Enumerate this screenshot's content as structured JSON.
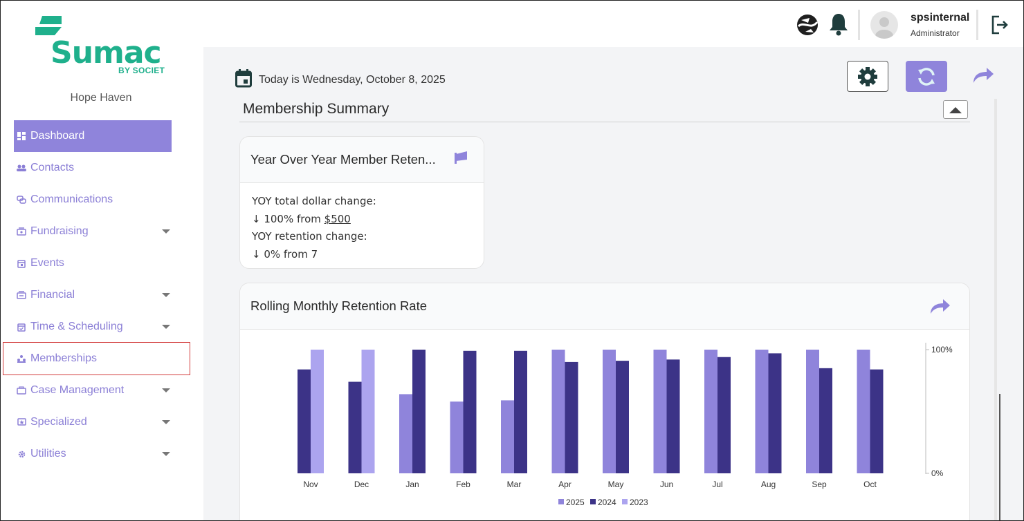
{
  "sidebar": {
    "logo_text": "Sumac",
    "logo_sub": "BY SOCIET",
    "org_name": "Hope Haven",
    "items": [
      {
        "label": "Dashboard",
        "icon": "dashboard-icon",
        "active": true,
        "caret": false
      },
      {
        "label": "Contacts",
        "icon": "contacts-icon",
        "caret": false
      },
      {
        "label": "Communications",
        "icon": "communications-icon",
        "caret": false
      },
      {
        "label": "Fundraising",
        "icon": "fundraising-icon",
        "caret": true
      },
      {
        "label": "Events",
        "icon": "events-icon",
        "caret": false
      },
      {
        "label": "Financial",
        "icon": "financial-icon",
        "caret": true
      },
      {
        "label": "Time & Scheduling",
        "icon": "calendar-check-icon",
        "caret": true
      },
      {
        "label": "Memberships",
        "icon": "memberships-icon",
        "caret": false,
        "highlighted": true
      },
      {
        "label": "Case Management",
        "icon": "case-management-icon",
        "caret": true
      },
      {
        "label": "Specialized",
        "icon": "specialized-icon",
        "caret": true
      },
      {
        "label": "Utilities",
        "icon": "utilities-icon",
        "caret": true
      }
    ]
  },
  "topbar": {
    "user_name": "spsinternal",
    "user_role": "Administrator",
    "icons": [
      "globe-support-icon",
      "bell-icon",
      "avatar-icon",
      "logout-icon"
    ]
  },
  "main": {
    "date_text": "Today is Wednesday, October 8, 2025",
    "section_title": "Membership Summary",
    "yoy_card": {
      "title": "Year Over Year Member Reten...",
      "line1": "YOY total dollar change:",
      "line2_prefix": "↓ 100% from ",
      "line2_amount": "$500",
      "line3": "YOY retention change:",
      "line4": "↓ 0% from 7"
    },
    "rolling_card": {
      "title": "Rolling Monthly Retention Rate"
    }
  },
  "colors": {
    "accent": "#8f84db",
    "brand_green": "#1fb08c",
    "series_2025": "#8f84db",
    "series_2024": "#3c3387",
    "series_2023": "#aca4ef"
  },
  "chart_data": {
    "type": "bar",
    "categories": [
      "Nov",
      "Dec",
      "Jan",
      "Feb",
      "Mar",
      "Apr",
      "May",
      "Jun",
      "Jul",
      "Aug",
      "Sep",
      "Oct"
    ],
    "series": [
      {
        "name": "2025",
        "values": [
          null,
          null,
          64,
          58,
          59,
          100,
          100,
          100,
          100,
          100,
          100,
          100
        ]
      },
      {
        "name": "2024",
        "values": [
          84,
          74,
          100,
          99,
          99,
          90,
          91,
          92,
          94,
          97,
          85,
          84
        ]
      },
      {
        "name": "2023",
        "values": [
          100,
          100,
          null,
          null,
          null,
          null,
          null,
          null,
          null,
          null,
          null,
          null
        ]
      }
    ],
    "y_ticks": [
      "100%",
      "0%"
    ],
    "ylim": [
      0,
      100
    ],
    "ylabel": "",
    "xlabel": "",
    "legend_position": "bottom",
    "grid": false
  }
}
